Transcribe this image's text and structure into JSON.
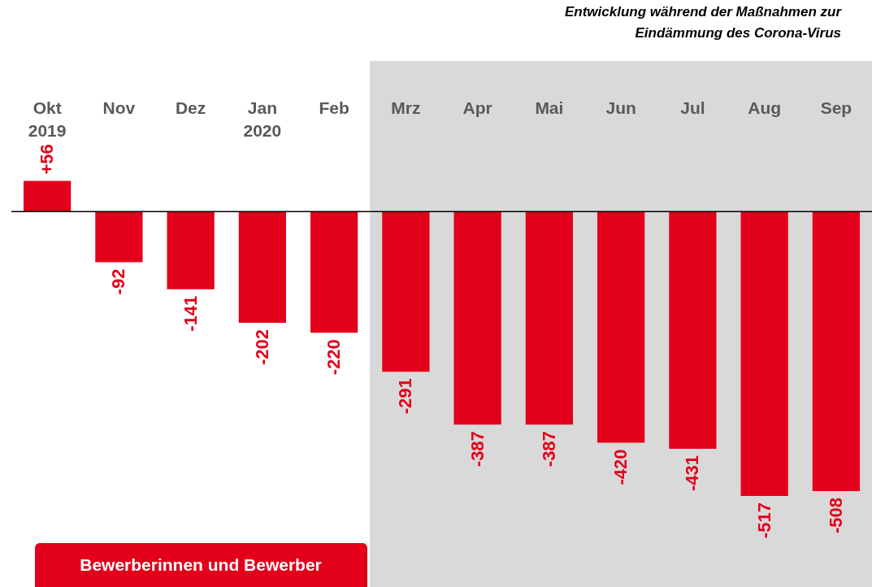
{
  "chart_data": {
    "type": "bar",
    "categories": [
      "Okt\n2019",
      "Nov",
      "Dez",
      "Jan\n2020",
      "Feb",
      "Mrz",
      "Apr",
      "Mai",
      "Jun",
      "Jul",
      "Aug",
      "Sep"
    ],
    "values": [
      56,
      -92,
      -141,
      -202,
      -220,
      -291,
      -387,
      -387,
      -420,
      -431,
      -517,
      -508
    ],
    "value_labels": [
      "+56",
      "-92",
      "-141",
      "-202",
      "-220",
      "-291",
      "-387",
      "-387",
      "-420",
      "-431",
      "-517",
      "-508"
    ],
    "color": "#e2001a",
    "bands": [
      {
        "axis": "x",
        "from": "Mrz",
        "to": "Sep",
        "label": "Entwicklung während der Maßnahmen zur\nEindämmung des Corona-Virus",
        "color": "#d9d9d9"
      }
    ],
    "ref_lines": [
      {
        "axis": "y",
        "value": 0,
        "color": "#000000"
      }
    ],
    "annotations": [
      "Bewerberinnen und Bewerber"
    ],
    "grid": false
  }
}
